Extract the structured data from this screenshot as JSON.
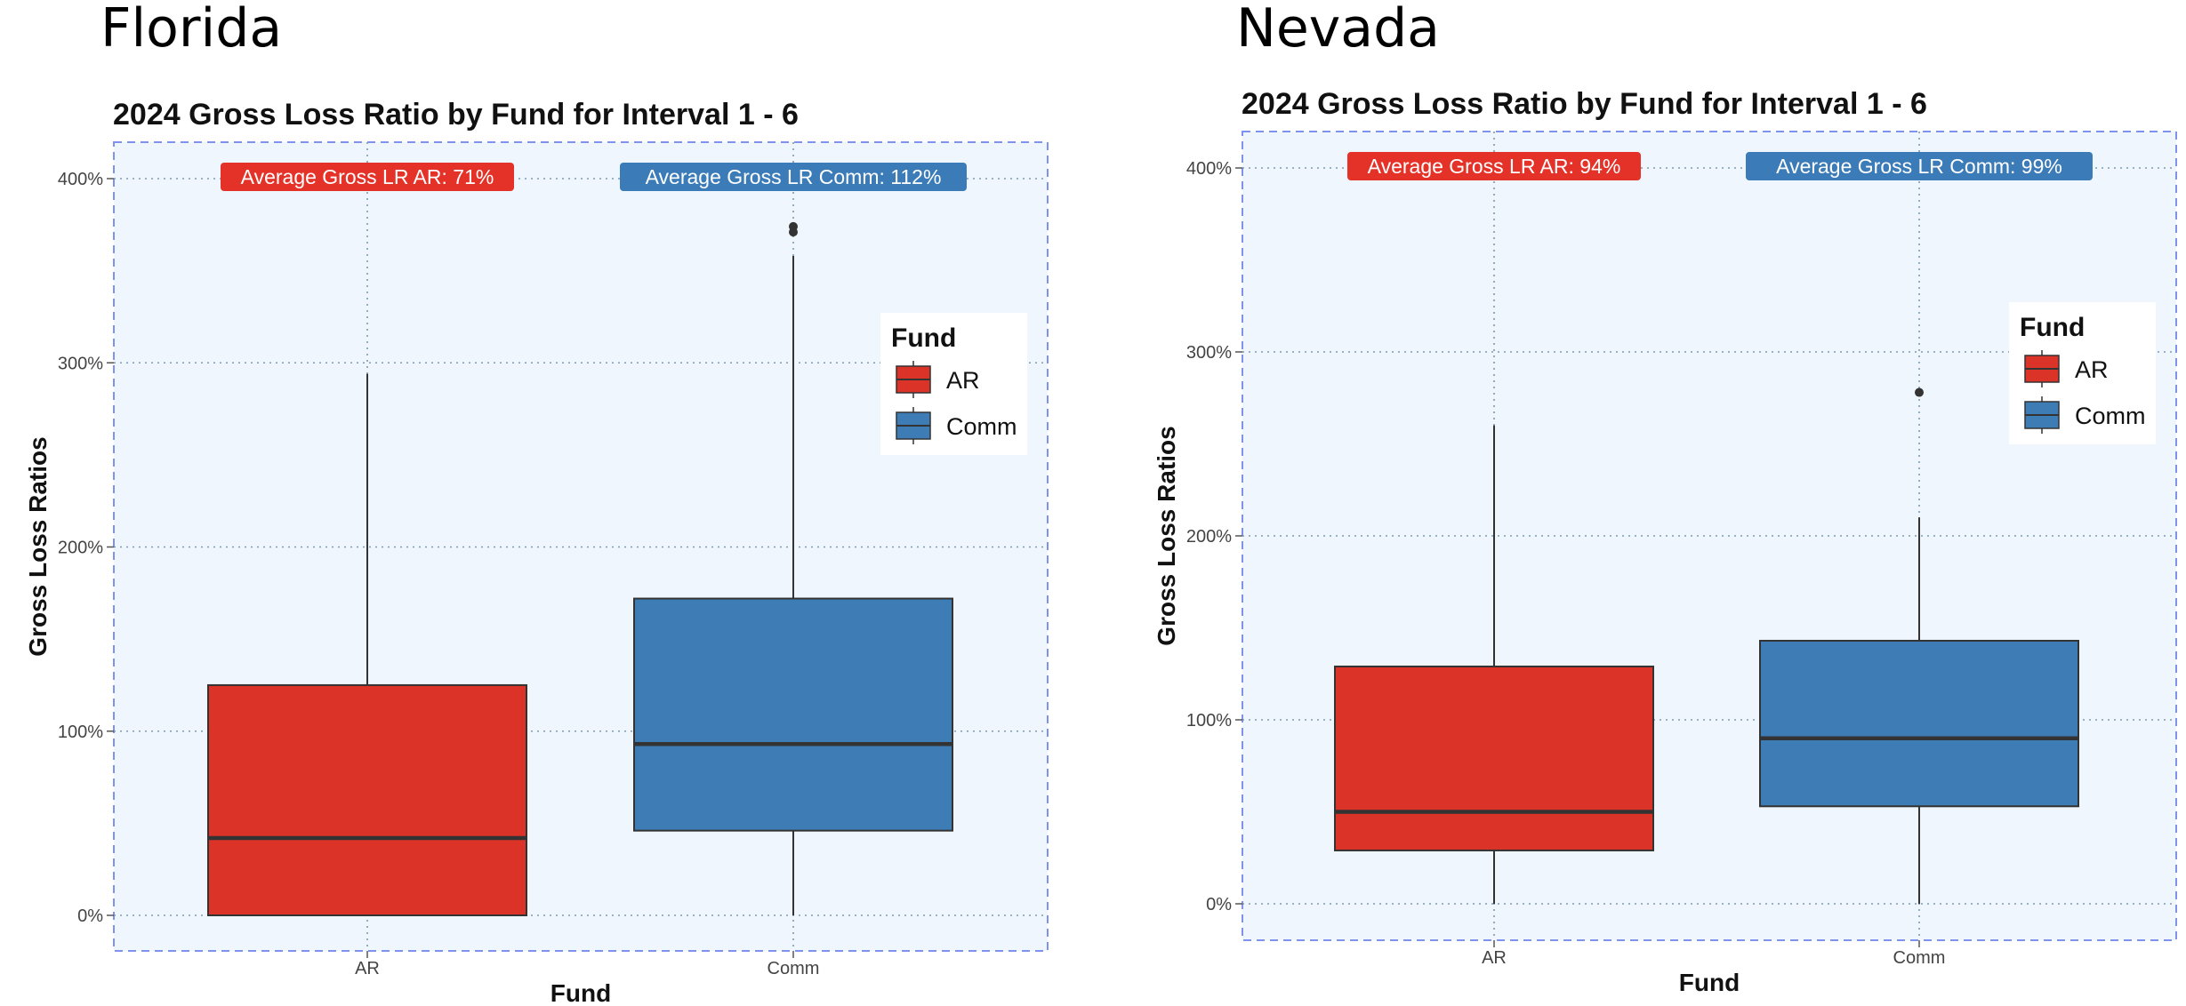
{
  "panels": [
    {
      "state": "Florida",
      "averages": [
        {
          "label": "Average Gross LR AR: 71%",
          "color": "#e53228"
        },
        {
          "label": "Average Gross LR Comm: 112%",
          "color": "#3a7bb8"
        }
      ]
    },
    {
      "state": "Nevada",
      "averages": [
        {
          "label": "Average Gross LR AR: 94%",
          "color": "#e53228"
        },
        {
          "label": "Average Gross LR Comm: 99%",
          "color": "#3a7bb8"
        }
      ]
    }
  ],
  "chart_data": [
    {
      "type": "box",
      "title": "2024 Gross Loss Ratio by Fund for Interval 1 - 6",
      "xlabel": "Fund",
      "ylabel": "Gross Loss Ratios",
      "categories": [
        "AR",
        "Comm"
      ],
      "yticks": [
        0,
        100,
        200,
        300,
        400
      ],
      "ytick_labels": [
        "0%",
        "100%",
        "200%",
        "300%",
        "400%"
      ],
      "ylim": [
        -20,
        420
      ],
      "grid": true,
      "legend": {
        "title": "Fund",
        "position": "right",
        "entries": [
          "AR",
          "Comm"
        ]
      },
      "colors": [
        "#db3327",
        "#3d7cb4"
      ],
      "boxes": [
        {
          "category": "AR",
          "min": 0,
          "q1": 0,
          "median": 42,
          "q3": 125,
          "max": 294,
          "outliers": []
        },
        {
          "category": "Comm",
          "min": 0,
          "q1": 46,
          "median": 93,
          "q3": 172,
          "max": 358,
          "outliers": [
            371,
            374
          ]
        }
      ]
    },
    {
      "type": "box",
      "title": "2024 Gross Loss Ratio by Fund for Interval 1 - 6",
      "xlabel": "Fund",
      "ylabel": "Gross Loss Ratios",
      "categories": [
        "AR",
        "Comm"
      ],
      "yticks": [
        0,
        100,
        200,
        300,
        400
      ],
      "ytick_labels": [
        "0%",
        "100%",
        "200%",
        "300%",
        "400%"
      ],
      "ylim": [
        -20,
        420
      ],
      "grid": true,
      "legend": {
        "title": "Fund",
        "position": "right",
        "entries": [
          "AR",
          "Comm"
        ]
      },
      "colors": [
        "#db3327",
        "#3d7cb4"
      ],
      "boxes": [
        {
          "category": "AR",
          "min": 0,
          "q1": 29,
          "median": 50,
          "q3": 129,
          "max": 260,
          "outliers": []
        },
        {
          "category": "Comm",
          "min": 0,
          "q1": 53,
          "median": 90,
          "q3": 143,
          "max": 210,
          "outliers": [
            278
          ]
        }
      ]
    }
  ]
}
